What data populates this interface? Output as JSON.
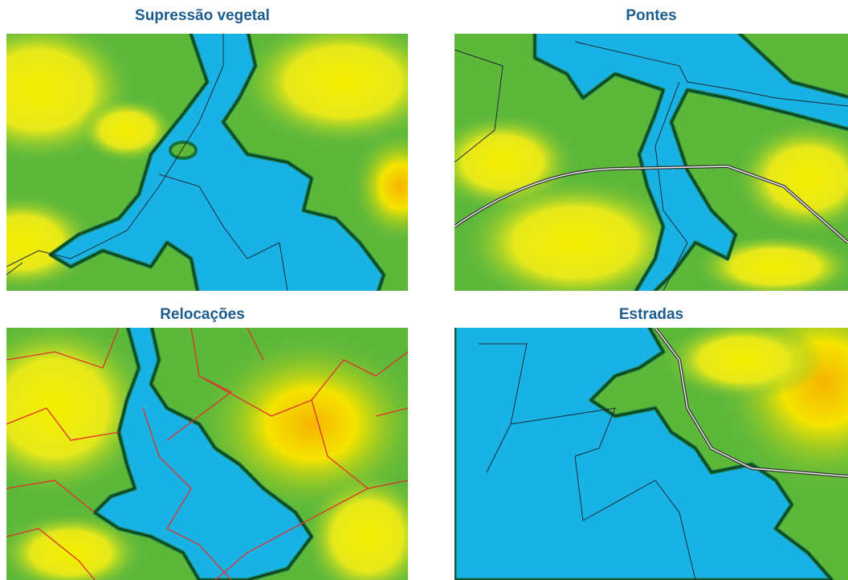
{
  "panels": [
    {
      "title": "Supressão vegetal"
    },
    {
      "title": "Pontes"
    },
    {
      "title": "Relocações"
    },
    {
      "title": "Estradas"
    }
  ]
}
